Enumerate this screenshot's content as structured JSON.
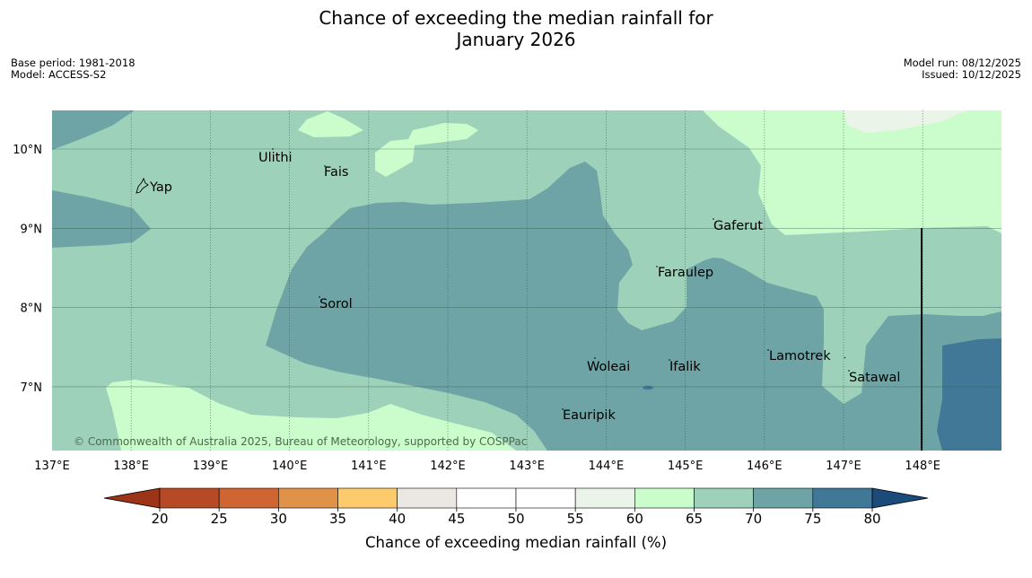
{
  "title": {
    "line1": "Chance of exceeding the median rainfall for",
    "line2": "January 2026"
  },
  "info_left": {
    "base_period": "Base period: 1981-2018",
    "model": "Model: ACCESS-S2"
  },
  "info_right": {
    "model_run": "Model run: 08/12/2025",
    "issued": "Issued: 10/12/2025"
  },
  "map": {
    "lon_ticks": [
      "137°E",
      "138°E",
      "139°E",
      "140°E",
      "141°E",
      "142°E",
      "143°E",
      "144°E",
      "145°E",
      "146°E",
      "147°E",
      "148°E"
    ],
    "lat_ticks": [
      "10°N",
      "9°N",
      "8°N",
      "7°N"
    ],
    "places": [
      "Yap",
      "Ulithi",
      "Fais",
      "Gaferut",
      "Faraulep",
      "Sorol",
      "Woleai",
      "Ifalik",
      "Lamotrek",
      "Satawal",
      "Eauripik"
    ],
    "credit": "© Commonwealth of Australia 2025, Bureau of Meteorology, supported by COSPPac"
  },
  "colorbar": {
    "ticks": [
      "20",
      "25",
      "30",
      "35",
      "40",
      "45",
      "50",
      "55",
      "60",
      "65",
      "70",
      "75",
      "80"
    ],
    "colors": [
      "#9c3517",
      "#b74a26",
      "#cf6531",
      "#e09248",
      "#fdcb6b",
      "#ebe8e3",
      "#ffffff",
      "#ffffff",
      "#eaf4e9",
      "#cbfccb",
      "#9ed1b9",
      "#6ea4a6",
      "#417898",
      "#1a4b7a"
    ],
    "label": "Chance of exceeding median rainfall (%)"
  },
  "palette": {
    "c60_65": "#cbfccb",
    "c65_70": "#9ed1b9",
    "c70_75": "#6ea4a6",
    "c75_80": "#417898",
    "c55_60": "#eaf4e9"
  }
}
